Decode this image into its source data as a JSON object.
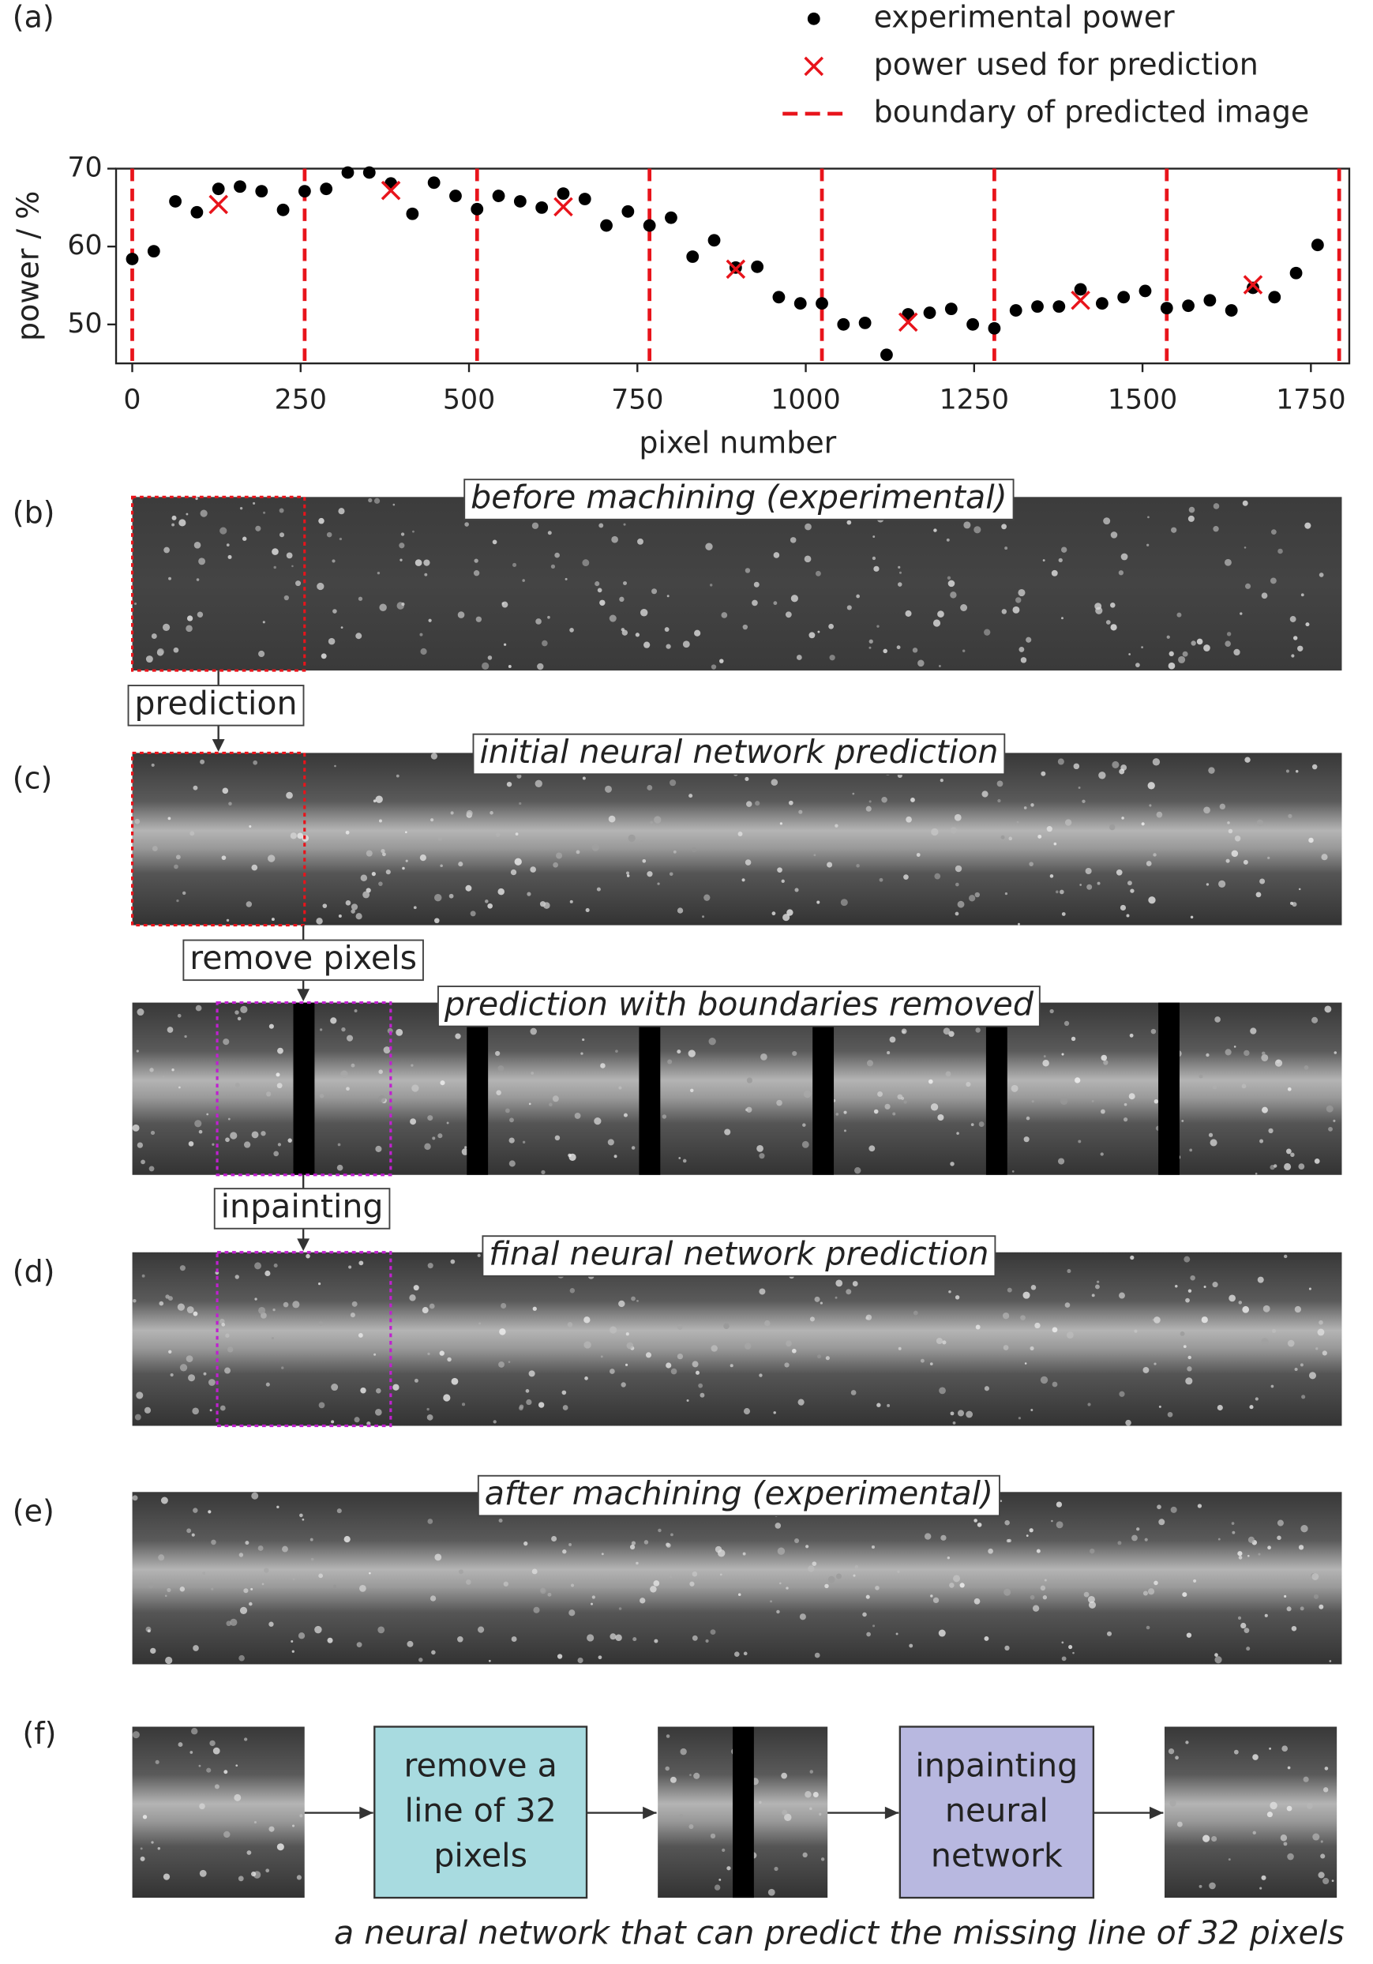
{
  "chart_data": {
    "type": "scatter",
    "xlabel": "pixel number",
    "ylabel": "power / %",
    "xlim": [
      -24,
      1807
    ],
    "ylim": [
      45,
      70
    ],
    "xticks": [
      0,
      250,
      500,
      750,
      1000,
      1250,
      1500,
      1750
    ],
    "yticks": [
      50,
      60,
      70
    ],
    "series": [
      {
        "name": "experimental power",
        "color": "#000000",
        "marker": "dot",
        "x": [
          0,
          32,
          64,
          96,
          128,
          160,
          192,
          224,
          256,
          288,
          320,
          352,
          384,
          416,
          448,
          480,
          512,
          544,
          576,
          608,
          640,
          672,
          704,
          736,
          768,
          800,
          832,
          864,
          896,
          928,
          960,
          992,
          1024,
          1056,
          1088,
          1120,
          1152,
          1184,
          1216,
          1248,
          1280,
          1312,
          1344,
          1376,
          1408,
          1440,
          1472,
          1504,
          1536,
          1568,
          1600,
          1632,
          1664,
          1696,
          1728,
          1760
        ],
        "values": [
          58.4,
          59.4,
          65.8,
          64.4,
          67.4,
          67.7,
          67.1,
          64.7,
          67.1,
          67.4,
          69.5,
          69.5,
          68.1,
          64.2,
          68.2,
          66.5,
          64.8,
          66.5,
          65.8,
          65.0,
          66.8,
          66.1,
          62.7,
          64.5,
          62.7,
          63.7,
          58.7,
          60.8,
          57.3,
          57.4,
          53.5,
          52.7,
          52.7,
          50.0,
          50.2,
          46.1,
          51.3,
          51.5,
          52.0,
          50.0,
          49.5,
          51.8,
          52.3,
          52.3,
          54.5,
          52.7,
          53.5,
          54.3,
          52.1,
          52.4,
          53.1,
          51.8,
          54.7,
          53.5,
          56.6,
          60.2
        ]
      },
      {
        "name": "power used for prediction",
        "color": "#e8141b",
        "marker": "cross",
        "x": [
          128,
          384,
          640,
          896,
          1152,
          1408,
          1664
        ],
        "values": [
          65.4,
          67.2,
          65.1,
          57.1,
          50.3,
          53.1,
          55.1
        ]
      }
    ],
    "vlines": {
      "name": "boundary of predicted image",
      "color": "#e8141b",
      "x": [
        0,
        256,
        512,
        768,
        1024,
        1280,
        1536,
        1792
      ]
    }
  },
  "figure": {
    "panel_labels": [
      "(a)",
      "(b)",
      "(c)",
      "(d)",
      "(e)",
      "(f)"
    ],
    "captions": [
      "before machining (experimental)",
      "initial neural network prediction",
      "prediction with boundaries removed",
      "final neural network prediction",
      "after machining (experimental)"
    ],
    "steps": [
      "prediction",
      "remove pixels",
      "inpainting"
    ],
    "flow_boxes": [
      [
        "remove a",
        "line of 32",
        "pixels"
      ],
      [
        "inpainting",
        "neural",
        "network"
      ]
    ],
    "footer": "a neural network that can predict the missing line of 32 pixels"
  }
}
